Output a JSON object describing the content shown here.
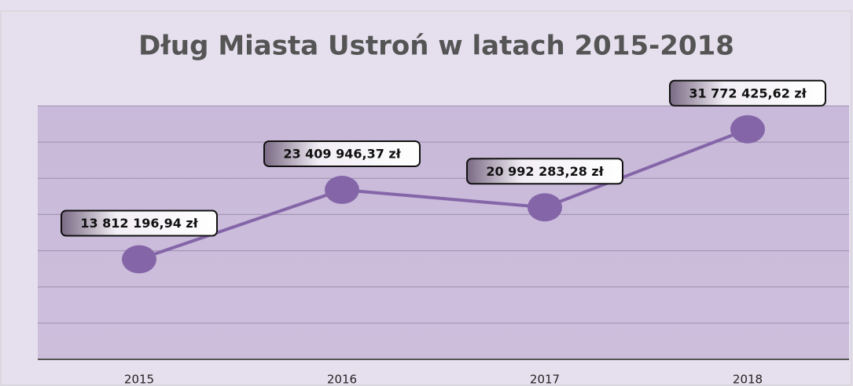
{
  "chart_data": {
    "type": "line",
    "title": "Dług Miasta Ustroń w latach 2015-2018",
    "categories": [
      "2015",
      "2016",
      "2017",
      "2018"
    ],
    "series": [
      {
        "name": "Dług",
        "color": "#8466a8",
        "values": [
          13812196.94,
          23409946.37,
          20992283.28,
          31772425.62
        ],
        "value_labels": [
          "13 812 196,94 zł",
          "23 409 946,37 zł",
          "20 992 283,28 zł",
          "31 772 425,62 zł"
        ]
      }
    ],
    "ylim": [
      0,
      35000000
    ],
    "yticks": [
      0,
      5000000,
      10000000,
      15000000,
      20000000,
      25000000,
      30000000,
      35000000
    ],
    "grid": true
  }
}
